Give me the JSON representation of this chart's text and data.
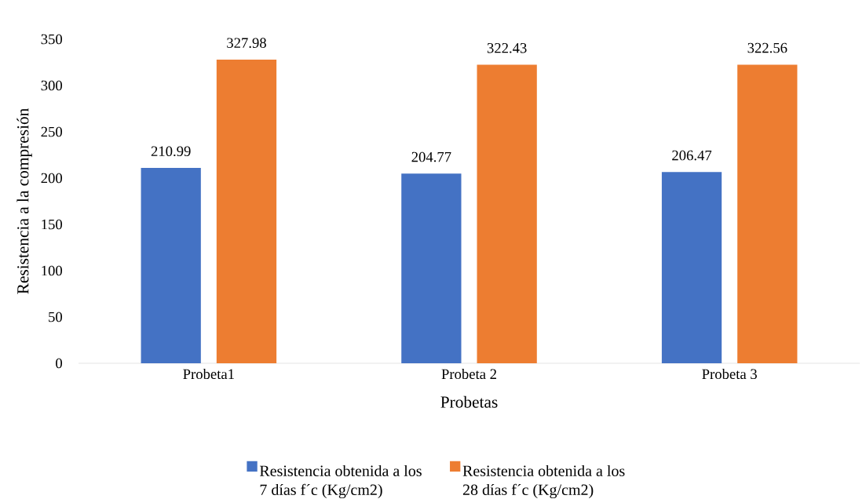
{
  "chart_data": {
    "type": "bar",
    "xlabel": "Probetas",
    "ylabel": "Resistencia a la compresión",
    "categories": [
      "Probeta1",
      "Probeta 2",
      "Probeta 3"
    ],
    "series": [
      {
        "name": "Resistencia obtenida a los 7 días f´c (Kg/cm2)",
        "color": "#4472c4",
        "values": [
          210.99,
          204.77,
          206.47
        ]
      },
      {
        "name": "Resistencia obtenida a los 28 días f´c (Kg/cm2)",
        "color": "#ed7d31",
        "values": [
          327.98,
          322.43,
          322.56
        ]
      }
    ],
    "ylim": [
      0,
      350
    ],
    "yticks": [
      0,
      50,
      100,
      150,
      200,
      250,
      300,
      350
    ],
    "data_labels": true,
    "legend": "bottom"
  }
}
